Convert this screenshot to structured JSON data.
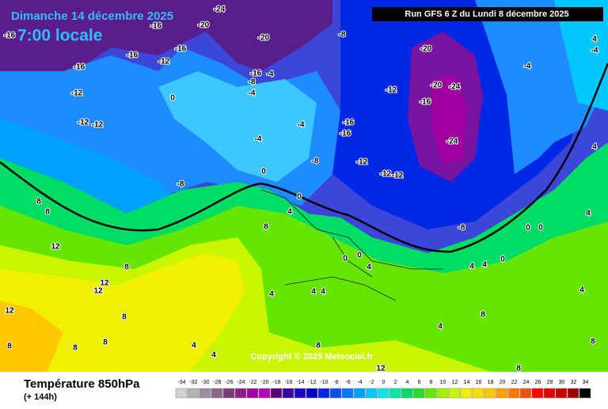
{
  "header": {
    "date": "Dimanche 14 décembre 2025",
    "time": "7:00 locale",
    "run": "Run GFS 6 Z du Lundi 8 décembre 2025"
  },
  "footer": {
    "title": "Température 850hPa",
    "lead": "(+ 144h)",
    "copyright": "Copyright © 2025 Meteociel.fr"
  },
  "colorbar": {
    "values": [
      -34,
      -32,
      -30,
      -28,
      -26,
      -24,
      -22,
      -20,
      -18,
      -16,
      -14,
      -12,
      -10,
      -8,
      -6,
      -4,
      -2,
      0,
      2,
      4,
      6,
      8,
      10,
      12,
      14,
      16,
      18,
      20,
      22,
      24,
      26,
      28,
      30,
      32,
      34
    ],
    "colors": [
      "#d2d2d2",
      "#b4b4b4",
      "#a08ca0",
      "#8c648c",
      "#783c78",
      "#8c1e8c",
      "#a000a0",
      "#b400b4",
      "#5a0078",
      "#3c00a0",
      "#1e00c8",
      "#0000c8",
      "#0028e6",
      "#0050ff",
      "#0078ff",
      "#00a0ff",
      "#00c8ff",
      "#00e6e6",
      "#00e6a0",
      "#00dc64",
      "#28dc28",
      "#64e600",
      "#a0f000",
      "#c8f500",
      "#f0f000",
      "#ffdc00",
      "#ffc800",
      "#ffa000",
      "#ff7800",
      "#ff5000",
      "#ff0000",
      "#e60000",
      "#c80000",
      "#a00000",
      "#000000"
    ]
  },
  "map_labels": [
    -16,
    -16,
    -16,
    -12,
    -16,
    -20,
    -16,
    -20,
    -24,
    -8,
    -20,
    -20,
    -24,
    -16,
    -24,
    -12,
    -12,
    -12,
    -12,
    0,
    -16,
    -8,
    -4,
    -4,
    -4,
    -4,
    -16,
    -16,
    -12,
    -12,
    -12,
    -8,
    0,
    -8,
    0,
    -4,
    -4,
    4,
    4,
    4,
    8,
    8,
    12,
    12,
    12,
    8,
    8,
    12,
    8,
    8,
    8,
    8,
    4,
    0,
    0,
    0,
    0,
    0,
    -8,
    4,
    4,
    4,
    4,
    4,
    8,
    4,
    4,
    4,
    8,
    12,
    8,
    4,
    8,
    4
  ]
}
